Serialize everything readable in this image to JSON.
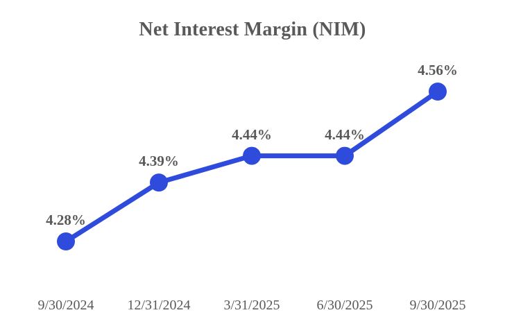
{
  "chart": {
    "accent_color": "#2E4BDB",
    "text_color": "#595959",
    "background_color": "#ffffff"
  },
  "chart_data": {
    "type": "line",
    "title": "Net Interest Margin (NIM)",
    "categories": [
      "9/30/2024",
      "12/31/2024",
      "3/31/2025",
      "6/30/2025",
      "9/30/2025"
    ],
    "series": [
      {
        "name": "NIM",
        "values": [
          4.28,
          4.39,
          4.44,
          4.44,
          4.56
        ],
        "labels": [
          "4.28%",
          "4.39%",
          "4.44%",
          "4.44%",
          "4.56%"
        ],
        "color": "#2E4BDB"
      }
    ],
    "xlabel": "",
    "ylabel": "",
    "ylim": [
      4.28,
      4.56
    ],
    "grid": false,
    "legend": false,
    "marker": "circle",
    "data_labels": true
  }
}
